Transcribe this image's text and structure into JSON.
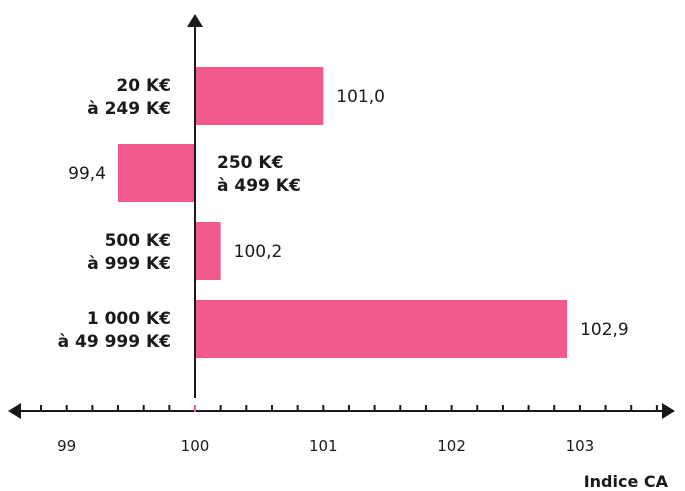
{
  "chart_data": {
    "type": "bar",
    "orientation": "horizontal",
    "baseline": 100,
    "categories": [
      [
        "20 K€",
        "à 249 K€"
      ],
      [
        "250 K€",
        "à 499 K€"
      ],
      [
        "500 K€",
        "à 999 K€"
      ],
      [
        "1 000 K€",
        "à 49 999 K€"
      ]
    ],
    "values": [
      101.0,
      99.4,
      100.2,
      102.9
    ],
    "value_labels": [
      "101,0",
      "99,4",
      "100,2",
      "102,9"
    ],
    "x_ticks": [
      99,
      100,
      101,
      102,
      103
    ],
    "x_tick_labels": [
      "99",
      "100",
      "101",
      "102",
      "103"
    ],
    "xlim": [
      98.35,
      103.9
    ],
    "xlabel": "Indice CA",
    "grid": false,
    "colors": {
      "bar": "#f05a8c",
      "axis": "#1a1a1a",
      "text": "#1a1a1a",
      "origin_marker": "#f05a8c"
    }
  }
}
